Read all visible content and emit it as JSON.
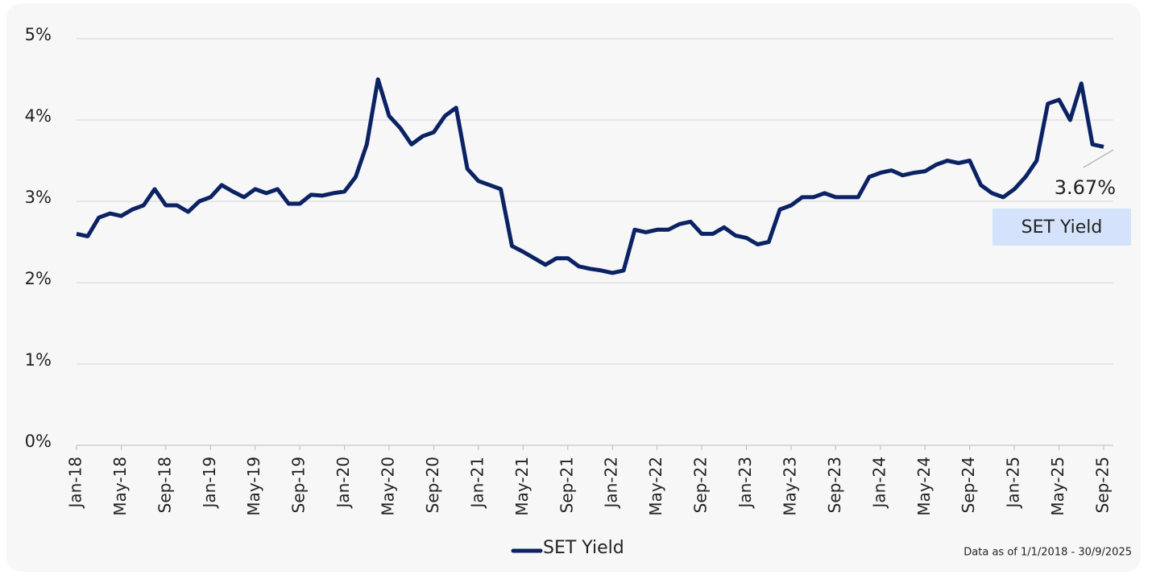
{
  "chart_data": {
    "type": "line",
    "categories": [
      "Jan-18",
      null,
      null,
      null,
      "May-18",
      null,
      null,
      null,
      "Sep-18",
      null,
      null,
      null,
      "Jan-19",
      null,
      null,
      null,
      "May-19",
      null,
      null,
      null,
      "Sep-19",
      null,
      null,
      null,
      "Jan-20",
      null,
      null,
      null,
      "May-20",
      null,
      null,
      null,
      "Sep-20",
      null,
      null,
      null,
      "Jan-21",
      null,
      null,
      null,
      "May-21",
      null,
      null,
      null,
      "Sep-21",
      null,
      null,
      null,
      "Jan-22",
      null,
      null,
      null,
      "May-22",
      null,
      null,
      null,
      "Sep-22",
      null,
      null,
      null,
      "Jan-23",
      null,
      null,
      null,
      "May-23",
      null,
      null,
      null,
      "Sep-23",
      null,
      null,
      null,
      "Jan-24",
      null,
      null,
      null,
      "May-24",
      null,
      null,
      null,
      "Sep-24",
      null,
      null,
      null,
      "Jan-25",
      null,
      null,
      null,
      "May-25",
      null,
      null,
      null,
      "Sep-25"
    ],
    "series": [
      {
        "name": "SET Yield",
        "color": "#0b2263",
        "values": [
          2.6,
          2.57,
          2.8,
          2.85,
          2.82,
          2.9,
          2.95,
          3.15,
          2.95,
          2.95,
          2.87,
          3.0,
          3.05,
          3.2,
          3.12,
          3.05,
          3.15,
          3.1,
          3.15,
          2.97,
          2.97,
          3.08,
          3.07,
          3.1,
          3.12,
          3.3,
          3.7,
          4.5,
          4.05,
          3.9,
          3.7,
          3.8,
          3.85,
          4.05,
          4.15,
          3.4,
          3.25,
          3.2,
          3.15,
          2.45,
          2.38,
          2.3,
          2.22,
          2.3,
          2.3,
          2.2,
          2.17,
          2.15,
          2.12,
          2.15,
          2.65,
          2.62,
          2.65,
          2.65,
          2.72,
          2.75,
          2.6,
          2.6,
          2.68,
          2.58,
          2.55,
          2.47,
          2.5,
          2.9,
          2.95,
          3.05,
          3.05,
          3.1,
          3.05,
          3.05,
          3.05,
          3.3,
          3.35,
          3.38,
          3.32,
          3.35,
          3.37,
          3.45,
          3.5,
          3.47,
          3.5,
          3.2,
          3.1,
          3.05,
          3.15,
          3.3,
          3.5,
          4.2,
          4.25,
          4.0,
          4.45,
          3.7,
          3.67
        ]
      }
    ],
    "ylim": [
      0,
      5
    ],
    "yticks": [
      {
        "value": 0,
        "label": "0%"
      },
      {
        "value": 1,
        "label": "1%"
      },
      {
        "value": 2,
        "label": "2%"
      },
      {
        "value": 3,
        "label": "3%"
      },
      {
        "value": 4,
        "label": "4%"
      },
      {
        "value": 5,
        "label": "5%"
      }
    ],
    "grid": true,
    "annotation": "3.67%",
    "end_label": "SET Yield",
    "footnote": "Data as of 1/1/2018 - 30/9/2025"
  }
}
